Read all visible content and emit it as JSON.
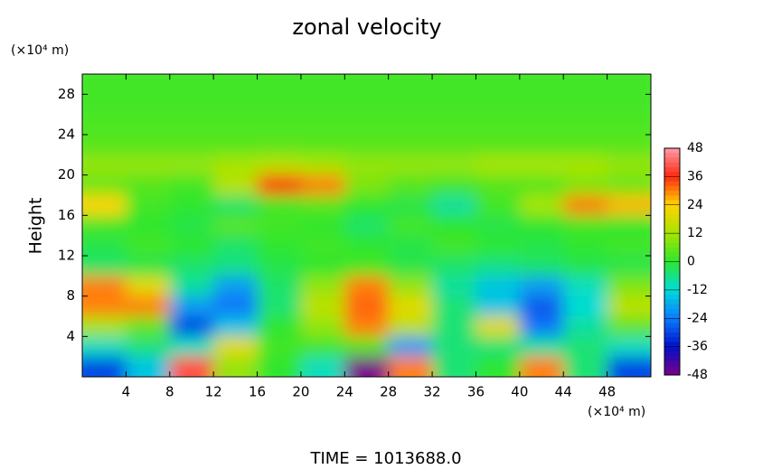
{
  "chart_data": {
    "type": "heatmap",
    "title": "zonal velocity",
    "x_unit": "(×10⁴ m)",
    "y_unit": "(×10⁴ m)",
    "y_label": "Height",
    "footer": "TIME = 1013688.0",
    "x": [
      2,
      6,
      10,
      14,
      18,
      22,
      26,
      30,
      34,
      38,
      42,
      46,
      50
    ],
    "y": [
      29,
      27,
      25,
      23,
      21,
      19,
      17,
      15,
      13,
      11,
      9,
      7,
      5,
      3,
      1
    ],
    "z": [
      [
        2,
        2,
        2,
        2,
        2,
        2,
        2,
        2,
        2,
        2,
        2,
        2,
        2
      ],
      [
        2,
        2,
        2,
        2,
        2,
        2,
        2,
        2,
        2,
        2,
        2,
        2,
        2
      ],
      [
        3,
        3,
        3,
        3,
        3,
        3,
        3,
        3,
        3,
        3,
        3,
        3,
        3
      ],
      [
        4,
        4,
        4,
        4,
        4,
        4,
        4,
        4,
        4,
        4,
        4,
        4,
        4
      ],
      [
        10,
        10,
        10,
        12,
        14,
        12,
        10,
        10,
        10,
        12,
        12,
        12,
        10
      ],
      [
        6,
        4,
        2,
        14,
        36,
        30,
        8,
        4,
        2,
        4,
        4,
        8,
        6
      ],
      [
        24,
        2,
        0,
        -4,
        2,
        4,
        0,
        -2,
        -8,
        2,
        12,
        30,
        26
      ],
      [
        2,
        0,
        -2,
        4,
        2,
        0,
        -4,
        2,
        0,
        -2,
        0,
        2,
        0
      ],
      [
        -2,
        2,
        0,
        -4,
        0,
        2,
        0,
        -2,
        2,
        0,
        -2,
        0,
        2
      ],
      [
        -4,
        -2,
        -4,
        -6,
        -2,
        0,
        2,
        -2,
        -4,
        -6,
        -4,
        -2,
        -2
      ],
      [
        30,
        20,
        -8,
        -20,
        -4,
        10,
        30,
        10,
        -8,
        -15,
        -20,
        -10,
        8
      ],
      [
        30,
        30,
        -20,
        -25,
        -5,
        15,
        32,
        20,
        -5,
        -15,
        -28,
        -12,
        15
      ],
      [
        12,
        5,
        -30,
        -15,
        0,
        10,
        30,
        15,
        -5,
        20,
        -25,
        -8,
        5
      ],
      [
        -10,
        -5,
        -10,
        20,
        2,
        2,
        4,
        -20,
        -5,
        -5,
        -8,
        -5,
        -10
      ],
      [
        -30,
        -15,
        40,
        10,
        0,
        -10,
        -48,
        30,
        -5,
        0,
        30,
        -5,
        -30
      ]
    ],
    "xlim": [
      0,
      52
    ],
    "xticks": [
      4,
      8,
      12,
      16,
      20,
      24,
      28,
      32,
      36,
      40,
      44,
      48
    ],
    "ylim": [
      0,
      30
    ],
    "yticks": [
      4,
      8,
      12,
      16,
      20,
      24,
      28
    ],
    "colorbar_ticks": [
      48,
      36,
      24,
      12,
      0,
      -12,
      -24,
      -36,
      -48
    ],
    "colormap": [
      "#ff9aa8",
      "#ff2a10",
      "#ffd400",
      "#a8e400",
      "#2ee62e",
      "#00dcd8",
      "#0a7cff",
      "#0010c8",
      "#7a008a"
    ]
  }
}
